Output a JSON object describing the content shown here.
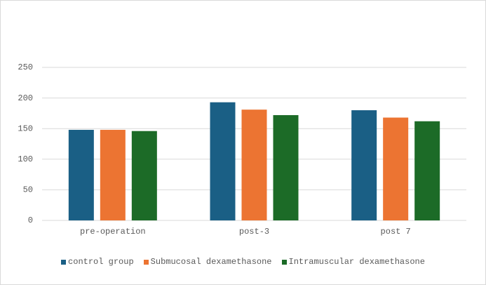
{
  "chart_data": {
    "type": "bar",
    "categories": [
      "pre-operation",
      "post-3",
      "post 7"
    ],
    "series": [
      {
        "name": "control group",
        "color": "#1a5f85",
        "values": [
          148,
          193,
          180
        ]
      },
      {
        "name": "Submucosal dexamethasone",
        "color": "#ec7432",
        "values": [
          148,
          181,
          168
        ]
      },
      {
        "name": "Intramuscular dexamethasone",
        "color": "#1c6b27",
        "values": [
          146,
          172,
          162
        ]
      }
    ],
    "ylim": [
      0,
      250
    ],
    "yticks": [
      0,
      50,
      100,
      150,
      200,
      250
    ],
    "grid": true,
    "legend": "bottom"
  }
}
